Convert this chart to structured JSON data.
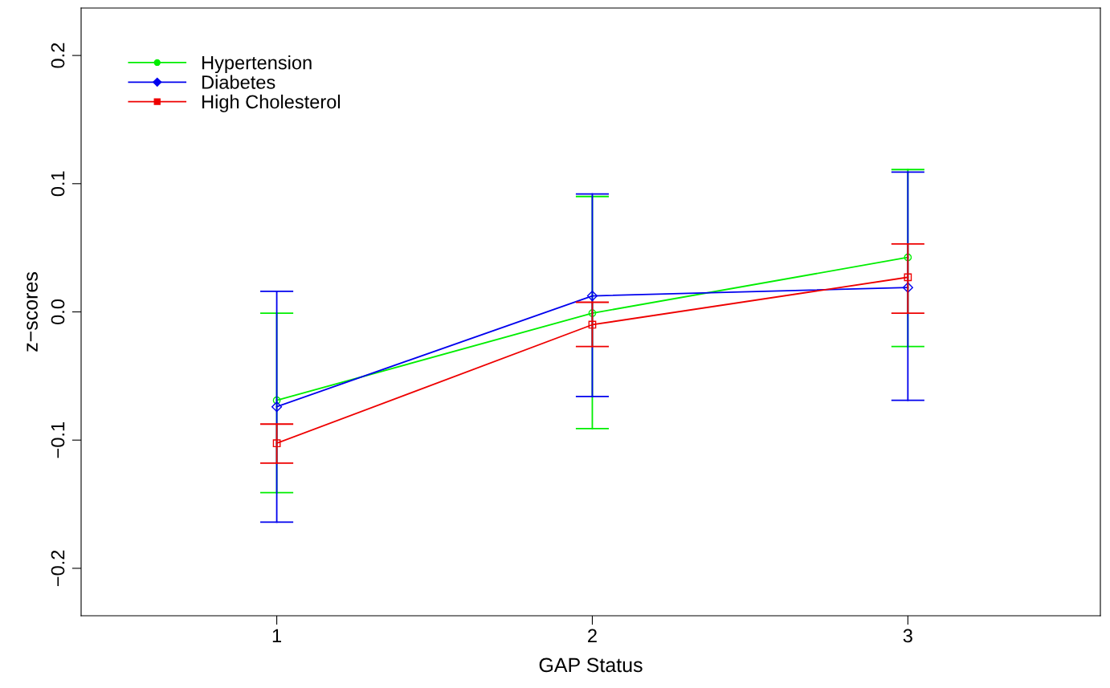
{
  "chart_data": {
    "type": "line",
    "xlabel": "GAP Status",
    "ylabel": "z−scores",
    "x": [
      1,
      2,
      3
    ],
    "series": [
      {
        "name": "Hypertension",
        "color": "#00ee00",
        "marker": "circle",
        "values": [
          -0.069,
          -0.001,
          0.0425
        ],
        "errors": [
          [
            -0.141,
            -0.001
          ],
          [
            -0.091,
            0.09
          ],
          [
            -0.027,
            0.111
          ]
        ]
      },
      {
        "name": "Diabetes",
        "color": "#0000ee",
        "marker": "diamond",
        "values": [
          -0.074,
          0.0125,
          0.019
        ],
        "errors": [
          [
            -0.164,
            0.016
          ],
          [
            -0.066,
            0.092
          ],
          [
            -0.069,
            0.109
          ]
        ]
      },
      {
        "name": "High Cholesterol",
        "color": "#ee0000",
        "marker": "square",
        "values": [
          -0.1025,
          -0.01,
          0.027
        ],
        "errors": [
          [
            -0.118,
            -0.0875
          ],
          [
            -0.027,
            0.0075
          ],
          [
            -0.001,
            0.053
          ]
        ]
      }
    ],
    "xlim": [
      0.38,
      3.61
    ],
    "xticks": [
      1,
      2,
      3
    ],
    "ylim": [
      -0.237,
      0.237
    ],
    "yticks": [
      -0.2,
      -0.1,
      {
        "value": 0,
        "label": "0.0"
      },
      0.1,
      0.2
    ],
    "legend": "top left",
    "grid": false
  }
}
